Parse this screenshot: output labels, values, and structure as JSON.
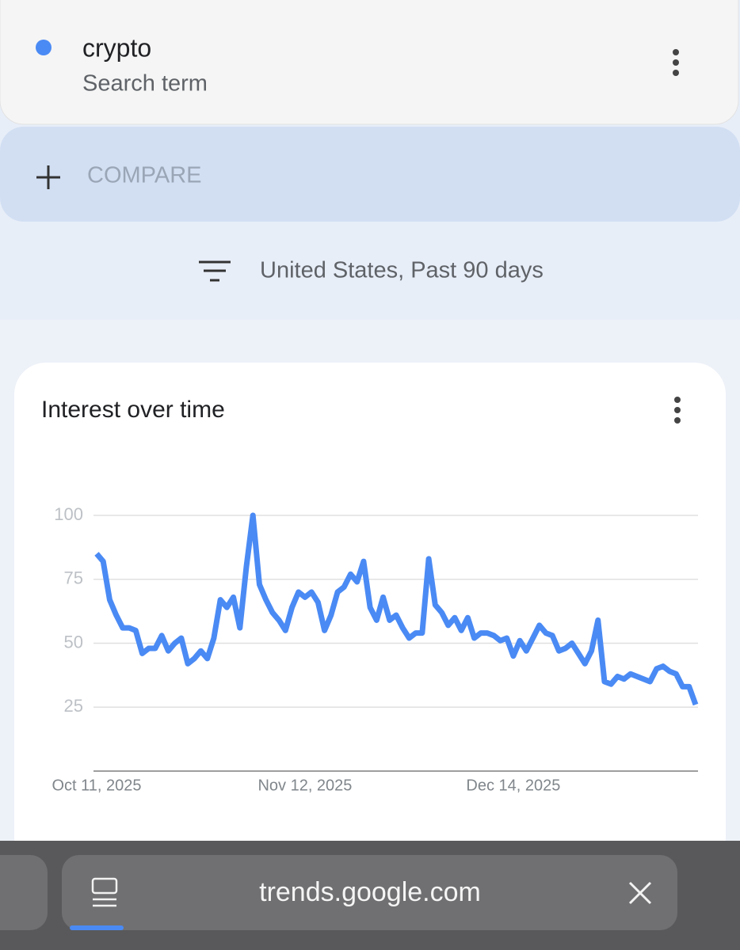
{
  "search_term": {
    "label": "crypto",
    "kind": "Search term"
  },
  "compare": "COMPARE",
  "filter": "United States, Past 90 days",
  "chart_data": {
    "type": "line",
    "title": "Interest over time",
    "categories": [
      "Oct 11, 2025",
      null,
      null,
      null,
      null,
      null,
      null,
      null,
      null,
      null,
      null,
      null,
      null,
      null,
      null,
      null,
      null,
      null,
      null,
      null,
      null,
      null,
      null,
      null,
      null,
      null,
      null,
      null,
      null,
      null,
      null,
      null,
      "Nov 12, 2025",
      null,
      null,
      null,
      null,
      null,
      null,
      null,
      null,
      null,
      null,
      null,
      null,
      null,
      null,
      null,
      null,
      null,
      null,
      null,
      null,
      null,
      null,
      null,
      null,
      null,
      null,
      null,
      null,
      null,
      null,
      null,
      "Dec 14, 2025",
      null,
      null,
      null,
      null,
      null,
      null,
      null,
      null,
      null,
      null,
      null,
      null,
      null,
      null,
      null,
      null,
      null,
      null,
      null,
      null,
      null,
      null,
      null,
      null,
      null,
      null,
      null,
      null
    ],
    "values": [
      85,
      82,
      67,
      61,
      56,
      56,
      55,
      46,
      48,
      48,
      53,
      47,
      50,
      52,
      42,
      44,
      47,
      44,
      52,
      67,
      64,
      68,
      56,
      80,
      100,
      73,
      67,
      62,
      59,
      55,
      64,
      70,
      68,
      70,
      66,
      55,
      61,
      70,
      72,
      77,
      74,
      82,
      64,
      59,
      68,
      59,
      61,
      56,
      52,
      54,
      54,
      83,
      65,
      62,
      57,
      60,
      55,
      60,
      52,
      54,
      54,
      53,
      51,
      52,
      45,
      51,
      47,
      52,
      57,
      54,
      53,
      47,
      48,
      50,
      46,
      42,
      47,
      59,
      35,
      34,
      37,
      36,
      38,
      37,
      36,
      35,
      40,
      41,
      39,
      38,
      33,
      33,
      26
    ],
    "color": "#4a8af4",
    "ylim": [
      0,
      100
    ],
    "yticks": [
      25,
      50,
      75,
      100
    ],
    "grid": true
  },
  "browser": {
    "url": "trends.google.com"
  }
}
